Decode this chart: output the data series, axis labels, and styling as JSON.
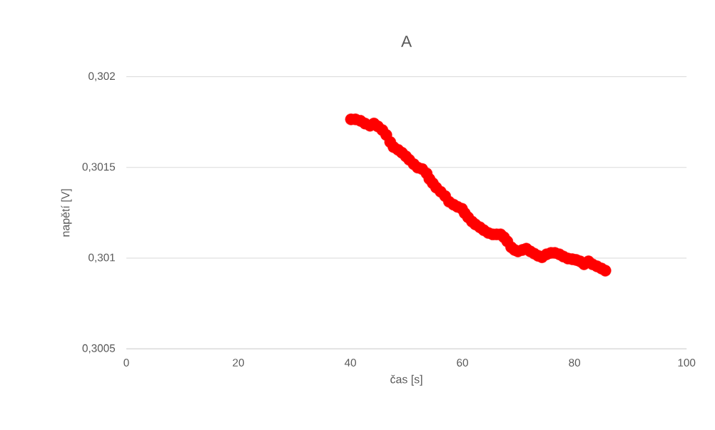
{
  "chart_data": {
    "type": "scatter",
    "title": "A",
    "xlabel": "čas [s]",
    "ylabel": "napětí [V]",
    "xlim": [
      0,
      100
    ],
    "xticks": [
      0,
      20,
      40,
      60,
      80,
      100
    ],
    "ylim": [
      0.3005,
      0.302
    ],
    "yticks": [
      {
        "value": 0.3005,
        "label": "0,3005"
      },
      {
        "value": 0.301,
        "label": "0,301"
      },
      {
        "value": 0.3015,
        "label": "0,3015"
      },
      {
        "value": 0.302,
        "label": "0,302"
      }
    ],
    "grid": "y",
    "legend": false,
    "marker": "circle",
    "series": [
      {
        "color": "#ff0000",
        "x": [
          40.1,
          40.9,
          41.8,
          42.6,
          43.5,
          44.2,
          44.9,
          45.7,
          46.4,
          47.1,
          47.7,
          48.5,
          49.2,
          49.9,
          50.5,
          51.3,
          52.0,
          52.8,
          53.6,
          54.1,
          54.7,
          55.3,
          56.1,
          56.9,
          57.6,
          58.4,
          59.1,
          59.9,
          60.4,
          61.0,
          61.7,
          62.3,
          63.1,
          63.8,
          64.6,
          65.4,
          66.1,
          66.8,
          67.4,
          68.0,
          68.7,
          69.3,
          69.9,
          70.7,
          71.4,
          72.1,
          72.8,
          73.5,
          74.2,
          75.0,
          75.8,
          76.5,
          77.3,
          78.0,
          78.8,
          79.6,
          80.3,
          81.0,
          81.7,
          82.5,
          83.2,
          84.0,
          84.8,
          85.5
        ],
        "values": [
          0.301765,
          0.301765,
          0.301757,
          0.301742,
          0.30173,
          0.301742,
          0.301726,
          0.301706,
          0.301679,
          0.30164,
          0.301612,
          0.301597,
          0.301581,
          0.301561,
          0.301542,
          0.301518,
          0.301499,
          0.301491,
          0.301467,
          0.301436,
          0.301413,
          0.301389,
          0.301366,
          0.301342,
          0.301311,
          0.301295,
          0.301283,
          0.301272,
          0.301248,
          0.301225,
          0.301201,
          0.301186,
          0.30117,
          0.301154,
          0.301139,
          0.301131,
          0.301131,
          0.301131,
          0.301115,
          0.301092,
          0.30106,
          0.301045,
          0.301037,
          0.301045,
          0.301052,
          0.301037,
          0.301025,
          0.301013,
          0.301005,
          0.301021,
          0.301029,
          0.301029,
          0.301021,
          0.301009,
          0.300998,
          0.300994,
          0.30099,
          0.300982,
          0.300966,
          0.300982,
          0.300966,
          0.300955,
          0.300943,
          0.300931
        ]
      }
    ]
  }
}
